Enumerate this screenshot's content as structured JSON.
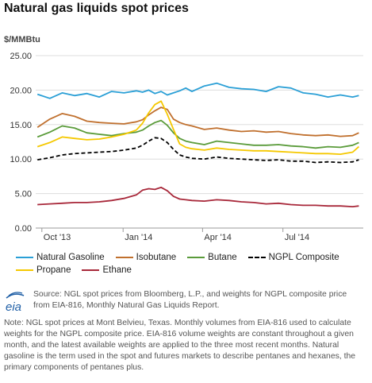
{
  "title": "Natural gas liquids spot prices",
  "unit_label": "$/MMBtu",
  "chart_data": {
    "type": "line",
    "title": "Natural gas liquids spot prices",
    "ylabel": "$/MMBtu",
    "ylim": [
      0,
      25
    ],
    "yticks": [
      "0.00",
      "5.00",
      "10.00",
      "15.00",
      "20.00",
      "25.00"
    ],
    "xticks": [
      "Oct '13",
      "Jan '14",
      "Apr '14",
      "Jul '14"
    ],
    "grid": true,
    "legend_position": "bottom",
    "x": [
      "2013-09-26",
      "2013-10-10",
      "2013-10-24",
      "2013-11-07",
      "2013-11-21",
      "2013-12-05",
      "2013-12-19",
      "2014-01-02",
      "2014-01-16",
      "2014-01-23",
      "2014-01-30",
      "2014-02-06",
      "2014-02-13",
      "2014-02-20",
      "2014-02-27",
      "2014-03-06",
      "2014-03-13",
      "2014-03-20",
      "2014-04-03",
      "2014-04-17",
      "2014-05-01",
      "2014-05-15",
      "2014-05-29",
      "2014-06-12",
      "2014-06-26",
      "2014-07-10",
      "2014-07-24",
      "2014-08-07",
      "2014-08-21",
      "2014-09-04",
      "2014-09-18",
      "2014-09-25"
    ],
    "series": [
      {
        "name": "Natural Gasoline",
        "color": "#2a9fd6",
        "dash": false,
        "values": [
          19.4,
          18.8,
          19.6,
          19.2,
          19.5,
          19.0,
          19.8,
          19.6,
          19.9,
          19.7,
          20.0,
          19.5,
          19.8,
          19.3,
          19.6,
          19.9,
          20.3,
          19.8,
          20.6,
          21.0,
          20.4,
          20.2,
          20.1,
          19.8,
          20.5,
          20.3,
          19.6,
          19.4,
          19.0,
          19.3,
          19.0,
          19.2
        ]
      },
      {
        "name": "Isobutane",
        "color": "#c0702e",
        "dash": false,
        "values": [
          14.6,
          15.8,
          16.6,
          16.2,
          15.5,
          15.3,
          15.2,
          15.1,
          15.4,
          15.7,
          16.4,
          17.0,
          17.5,
          17.2,
          15.8,
          15.3,
          15.0,
          14.8,
          14.3,
          14.5,
          14.2,
          14.0,
          14.1,
          13.9,
          14.0,
          13.7,
          13.5,
          13.4,
          13.5,
          13.3,
          13.4,
          13.8
        ]
      },
      {
        "name": "Butane",
        "color": "#5a9b3a",
        "dash": false,
        "values": [
          13.2,
          13.9,
          14.8,
          14.5,
          13.8,
          13.6,
          13.4,
          13.7,
          13.9,
          14.2,
          14.8,
          15.3,
          15.6,
          14.9,
          13.8,
          13.0,
          12.6,
          12.4,
          12.1,
          12.6,
          12.4,
          12.2,
          12.0,
          12.0,
          12.1,
          11.9,
          11.8,
          11.6,
          11.8,
          11.7,
          12.0,
          12.4
        ]
      },
      {
        "name": "NGPL Composite",
        "color": "#000000",
        "dash": true,
        "values": [
          9.9,
          10.2,
          10.6,
          10.8,
          10.9,
          11.0,
          11.1,
          11.3,
          11.6,
          12.0,
          12.6,
          13.1,
          13.0,
          12.4,
          11.4,
          10.6,
          10.3,
          10.1,
          10.0,
          10.3,
          10.1,
          10.0,
          9.9,
          9.8,
          9.9,
          9.7,
          9.7,
          9.5,
          9.6,
          9.5,
          9.6,
          9.9
        ]
      },
      {
        "name": "Propane",
        "color": "#f5c800",
        "dash": false,
        "values": [
          11.8,
          12.4,
          13.2,
          13.0,
          12.8,
          12.9,
          13.2,
          13.6,
          14.2,
          15.2,
          16.7,
          17.9,
          18.4,
          16.5,
          14.3,
          12.2,
          11.7,
          11.5,
          11.3,
          11.6,
          11.4,
          11.3,
          11.2,
          11.2,
          11.1,
          11.0,
          10.9,
          10.8,
          10.8,
          10.7,
          11.0,
          11.8
        ]
      },
      {
        "name": "Ethane",
        "color": "#a8283a",
        "dash": false,
        "values": [
          3.4,
          3.5,
          3.6,
          3.7,
          3.7,
          3.8,
          4.0,
          4.3,
          4.8,
          5.5,
          5.7,
          5.6,
          5.9,
          5.4,
          4.6,
          4.2,
          4.1,
          4.0,
          3.9,
          4.1,
          4.0,
          3.8,
          3.7,
          3.5,
          3.6,
          3.4,
          3.3,
          3.3,
          3.2,
          3.2,
          3.1,
          3.2
        ]
      }
    ]
  },
  "legend": [
    {
      "label": "Natural Gasoline",
      "color": "#2a9fd6",
      "dashed": false
    },
    {
      "label": "Isobutane",
      "color": "#c0702e",
      "dashed": false
    },
    {
      "label": "Butane",
      "color": "#5a9b3a",
      "dashed": false
    },
    {
      "label": "NGPL Composite",
      "color": "#000000",
      "dashed": true
    },
    {
      "label": "Propane",
      "color": "#f5c800",
      "dashed": false
    },
    {
      "label": "Ethane",
      "color": "#a8283a",
      "dashed": false
    }
  ],
  "logo_text": "eia",
  "source_text": "Source: NGL spot prices from Bloomberg, L.P., and weights for NGPL composite price from EIA-816, Monthly Natural Gas Liquids Report.",
  "note_text": "Note: NGL spot prices at Mont Belvieu, Texas. Monthly volumes from EIA-816 used to calculate weights for the NGPL composite price. EIA-816 volume weights are constant throughout a given month, and the latest available weights are applied to the three most recent months. Natural gasoline is the term used in the spot and futures markets to describe pentanes and hexanes, the primary components of pentanes plus."
}
